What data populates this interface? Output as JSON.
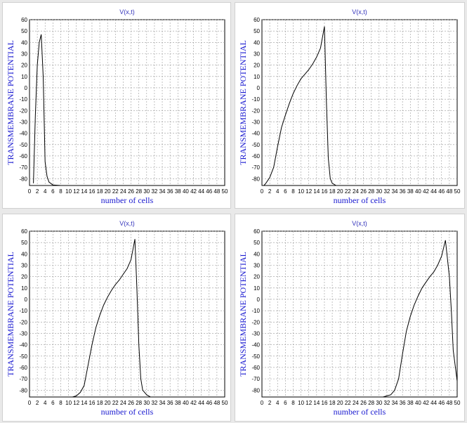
{
  "chart_data": [
    {
      "type": "line",
      "title": "V(x,t)",
      "xlabel": "number of cells",
      "ylabel": "TRANSMEMBRANE POTENTIAL",
      "xlim": [
        0,
        50
      ],
      "ylim": [
        -86,
        60
      ],
      "x_ticks": [
        0,
        2,
        4,
        6,
        8,
        10,
        12,
        14,
        16,
        18,
        20,
        22,
        24,
        26,
        28,
        30,
        32,
        34,
        36,
        38,
        40,
        42,
        44,
        46,
        48,
        50
      ],
      "y_ticks": [
        60,
        50,
        40,
        30,
        20,
        10,
        0,
        -10,
        -20,
        -30,
        -40,
        -50,
        -60,
        -70,
        -80
      ],
      "grid": true,
      "series": [
        {
          "x": [
            1,
            1.5,
            2,
            2.5,
            3,
            3.5,
            4,
            4.5,
            5,
            6,
            8,
            50
          ],
          "y": [
            -84,
            -25,
            20,
            40,
            47,
            10,
            -65,
            -78,
            -83,
            -85.5,
            -86,
            -86
          ]
        }
      ]
    },
    {
      "type": "line",
      "title": "V(x,t)",
      "xlabel": "number of cells",
      "ylabel": "TRANSMEMBRANE POTENTIAL",
      "xlim": [
        0,
        50
      ],
      "ylim": [
        -86,
        60
      ],
      "x_ticks": [
        0,
        2,
        4,
        6,
        8,
        10,
        12,
        14,
        16,
        18,
        20,
        22,
        24,
        26,
        28,
        30,
        32,
        34,
        36,
        38,
        40,
        42,
        44,
        46,
        48,
        50
      ],
      "y_ticks": [
        60,
        50,
        40,
        30,
        20,
        10,
        0,
        -10,
        -20,
        -30,
        -40,
        -50,
        -60,
        -70,
        -80
      ],
      "grid": true,
      "series": [
        {
          "x": [
            0.5,
            1,
            2,
            3,
            4,
            5,
            6,
            7,
            8,
            9,
            10,
            11,
            12,
            13,
            14,
            15,
            16,
            16.5,
            17,
            17.5,
            18,
            19,
            20,
            50
          ],
          "y": [
            -86,
            -84,
            -79,
            -70,
            -52,
            -35,
            -24,
            -14,
            -5,
            2,
            8,
            12,
            16,
            21,
            27,
            35,
            54,
            -10,
            -62,
            -80,
            -84,
            -86,
            -86,
            -86
          ]
        }
      ]
    },
    {
      "type": "line",
      "title": "V(x,t)",
      "xlabel": "number of cells",
      "ylabel": "TRANSMEMBRANE POTENTIAL",
      "xlim": [
        0,
        50
      ],
      "ylim": [
        -86,
        60
      ],
      "x_ticks": [
        0,
        2,
        4,
        6,
        8,
        10,
        12,
        14,
        16,
        18,
        20,
        22,
        24,
        26,
        28,
        30,
        32,
        34,
        36,
        38,
        40,
        42,
        44,
        46,
        48,
        50
      ],
      "y_ticks": [
        60,
        50,
        40,
        30,
        20,
        10,
        0,
        -10,
        -20,
        -30,
        -40,
        -50,
        -60,
        -70,
        -80
      ],
      "grid": true,
      "series": [
        {
          "x": [
            1,
            10,
            11,
            12,
            13,
            14,
            15,
            16,
            17,
            18,
            19,
            20,
            21,
            22,
            23,
            24,
            25,
            26,
            27,
            27.5,
            28,
            28.5,
            29,
            30,
            31,
            50
          ],
          "y": [
            -86,
            -86,
            -86,
            -85,
            -82,
            -76,
            -58,
            -40,
            -25,
            -14,
            -5,
            2,
            8,
            13,
            17,
            22,
            27,
            35,
            53,
            10,
            -40,
            -70,
            -80,
            -84,
            -86,
            -86
          ]
        }
      ]
    },
    {
      "type": "line",
      "title": "V(x,t)",
      "xlabel": "number of cells",
      "ylabel": "TRANSMEMBRANE POTENTIAL",
      "xlim": [
        0,
        50
      ],
      "ylim": [
        -86,
        60
      ],
      "x_ticks": [
        0,
        2,
        4,
        6,
        8,
        10,
        12,
        14,
        16,
        18,
        20,
        22,
        24,
        26,
        28,
        30,
        32,
        34,
        36,
        38,
        40,
        42,
        44,
        46,
        48,
        50
      ],
      "y_ticks": [
        60,
        50,
        40,
        30,
        20,
        10,
        0,
        -10,
        -20,
        -30,
        -40,
        -50,
        -60,
        -70,
        -80
      ],
      "grid": true,
      "series": [
        {
          "x": [
            1,
            30,
            31,
            32,
            33,
            34,
            35,
            36,
            37,
            38,
            39,
            40,
            41,
            42,
            43,
            44,
            45,
            46,
            47,
            48,
            48.5,
            49,
            50
          ],
          "y": [
            -86,
            -86,
            -86,
            -85,
            -84,
            -80,
            -70,
            -48,
            -28,
            -15,
            -5,
            3,
            10,
            15,
            20,
            24,
            30,
            38,
            52,
            20,
            -10,
            -45,
            -72
          ]
        }
      ]
    }
  ]
}
